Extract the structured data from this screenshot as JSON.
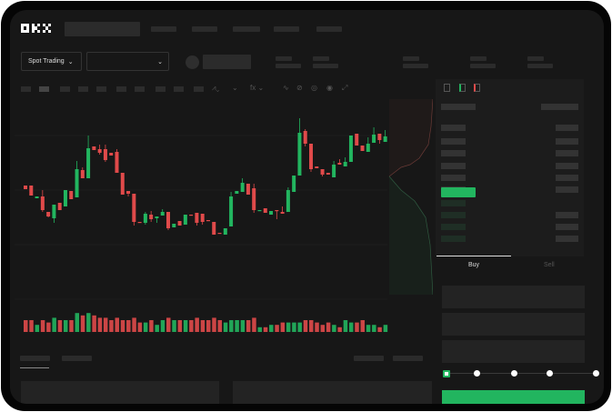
{
  "header": {
    "logo": "OKX"
  },
  "market_bar": {
    "mode_dropdown": "Spot Trading"
  },
  "order_form": {
    "tabs": [
      "Buy",
      "Sell"
    ],
    "active_tab": "Buy",
    "leverage_slider_percent": 0
  },
  "colors": {
    "up": "#22b55f",
    "down": "#e04a4a",
    "background": "#171717"
  },
  "chart_data": {
    "type": "candlestick",
    "note_units": "unlabeled price axis",
    "ohlc": [
      [
        137,
        137,
        133,
        133
      ],
      [
        137,
        137,
        126,
        126
      ],
      [
        123,
        125,
        123,
        125
      ],
      [
        125,
        132,
        108,
        110
      ],
      [
        108,
        108,
        102,
        103
      ],
      [
        101,
        116,
        96,
        116
      ],
      [
        118,
        118,
        110,
        110
      ],
      [
        114,
        132,
        114,
        132
      ],
      [
        131,
        131,
        122,
        122
      ],
      [
        124,
        164,
        124,
        155
      ],
      [
        154,
        157,
        145,
        145
      ],
      [
        145,
        192,
        145,
        178
      ],
      [
        180,
        180,
        176,
        176
      ],
      [
        177,
        182,
        171,
        173
      ],
      [
        177,
        182,
        163,
        165
      ],
      [
        173,
        173,
        170,
        170
      ],
      [
        174,
        177,
        151,
        151
      ],
      [
        151,
        151,
        127,
        127
      ],
      [
        131,
        131,
        125,
        128
      ],
      [
        128,
        128,
        93,
        97
      ],
      [
        97,
        97,
        96,
        96
      ],
      [
        96,
        108,
        94,
        106
      ],
      [
        105,
        109,
        97,
        100
      ],
      [
        101,
        103,
        96,
        103
      ],
      [
        104,
        111,
        104,
        108
      ],
      [
        108,
        108,
        88,
        90
      ],
      [
        91,
        95,
        91,
        95
      ],
      [
        98,
        98,
        93,
        93
      ],
      [
        94,
        105,
        94,
        105
      ],
      [
        105,
        105,
        104,
        104
      ],
      [
        107,
        107,
        93,
        96
      ],
      [
        106,
        106,
        94,
        97
      ],
      [
        99,
        99,
        98,
        98
      ],
      [
        97,
        97,
        83,
        83
      ],
      [
        85,
        85,
        84,
        84
      ],
      [
        83,
        90,
        83,
        90
      ],
      [
        92,
        130,
        92,
        125
      ],
      [
        128,
        131,
        128,
        131
      ],
      [
        130,
        145,
        130,
        140
      ],
      [
        139,
        139,
        127,
        127
      ],
      [
        134,
        139,
        107,
        110
      ],
      [
        109,
        110,
        109,
        110
      ],
      [
        112,
        112,
        107,
        107
      ],
      [
        105,
        109,
        105,
        109
      ],
      [
        110,
        110,
        100,
        109
      ],
      [
        108,
        114,
        106,
        106
      ],
      [
        108,
        135,
        108,
        132
      ],
      [
        130,
        148,
        130,
        148
      ],
      [
        148,
        211,
        148,
        195
      ],
      [
        197,
        199,
        180,
        183
      ],
      [
        183,
        183,
        152,
        155
      ],
      [
        158,
        158,
        156,
        156
      ],
      [
        155,
        155,
        147,
        149
      ],
      [
        151,
        151,
        149,
        149
      ],
      [
        146,
        164,
        146,
        160
      ],
      [
        162,
        166,
        160,
        160
      ],
      [
        158,
        168,
        158,
        163
      ],
      [
        163,
        192,
        163,
        192
      ],
      [
        194,
        194,
        181,
        181
      ],
      [
        181,
        181,
        175,
        175
      ],
      [
        174,
        190,
        174,
        183
      ],
      [
        184,
        201,
        184,
        193
      ],
      [
        194,
        194,
        183,
        187
      ],
      [
        185,
        198,
        185,
        191
      ]
    ],
    "volume": [
      5,
      5,
      3,
      5,
      4,
      6,
      5,
      5,
      5,
      8,
      7,
      8,
      7,
      6,
      6,
      5,
      6,
      5,
      5,
      6,
      4,
      4,
      5,
      3,
      5,
      6,
      5,
      5,
      5,
      5,
      6,
      5,
      5,
      6,
      5,
      4,
      5,
      5,
      5,
      5,
      6,
      2,
      2,
      3,
      3,
      4,
      4,
      4,
      4,
      5,
      5,
      4,
      3,
      4,
      3,
      2,
      5,
      4,
      4,
      5,
      3,
      3,
      2,
      3
    ],
    "grid": true
  }
}
